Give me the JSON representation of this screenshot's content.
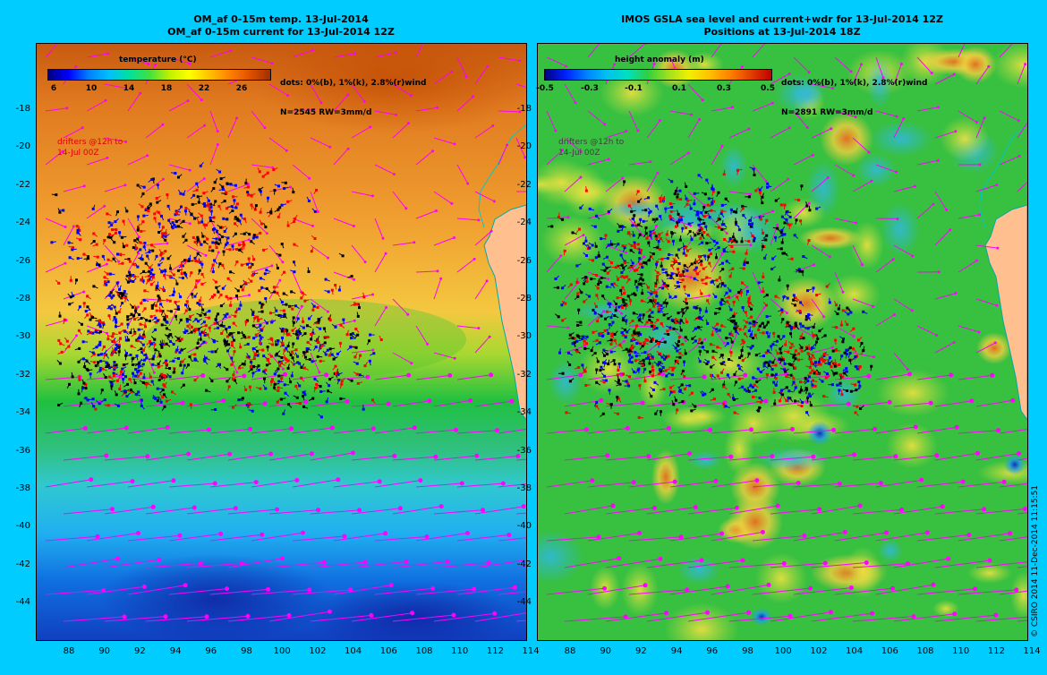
{
  "left_panel": {
    "title_line1": "OM_af 0-15m temp. 13-Jul-2014",
    "title_line2": "OM_af 0-15m current for 13-Jul-2014 12Z",
    "legend_title": "temperature (°C)",
    "legend_ticks": [
      "6",
      "10",
      "14",
      "18",
      "22",
      "26"
    ],
    "note_line1": "dots: 0%(b), 1%(k), 2.8%(r)wind",
    "note_line2": "N=2545 RW=3mm/d",
    "drifters_note": "drifters @12h to\n14-Jul 00Z"
  },
  "right_panel": {
    "title_line1": "IMOS GSLA sea level and current+wdr for 13-Jul-2014 12Z",
    "title_line2": "Positions at 13-Jul-2014 18Z",
    "legend_title": "height anomaly (m)",
    "legend_ticks": [
      "-0.5",
      "-0.3",
      "-0.1",
      "0.1",
      "0.3",
      "0.5"
    ],
    "note_line1": "dots: 0%(b), 1%(k), 2.8%(r)wind",
    "note_line2": "N=2891 RW=3mm/d",
    "drifters_note": "drifters @12h to\n14-Jul 00Z"
  },
  "axes": {
    "lat_ticks": [
      "-18",
      "-20",
      "-22",
      "-24",
      "-26",
      "-28",
      "-30",
      "-32",
      "-34",
      "-36",
      "-38",
      "-40",
      "-42",
      "-44"
    ],
    "lon_ticks": [
      "88",
      "90",
      "92",
      "94",
      "96",
      "98",
      "100",
      "102",
      "104",
      "106",
      "108",
      "110",
      "112",
      "114"
    ]
  },
  "copyright": "© CSIRO 2014  11-Dec-2014 11:15:51",
  "colors": {
    "page_background": "#00ccff",
    "land": "#ffbf8f",
    "drifter_zero_wind": "#0000ff",
    "drifter_one_pct_wind": "#000000",
    "drifter_wind": "#ff0000",
    "current_vectors": "#ff00ff"
  }
}
